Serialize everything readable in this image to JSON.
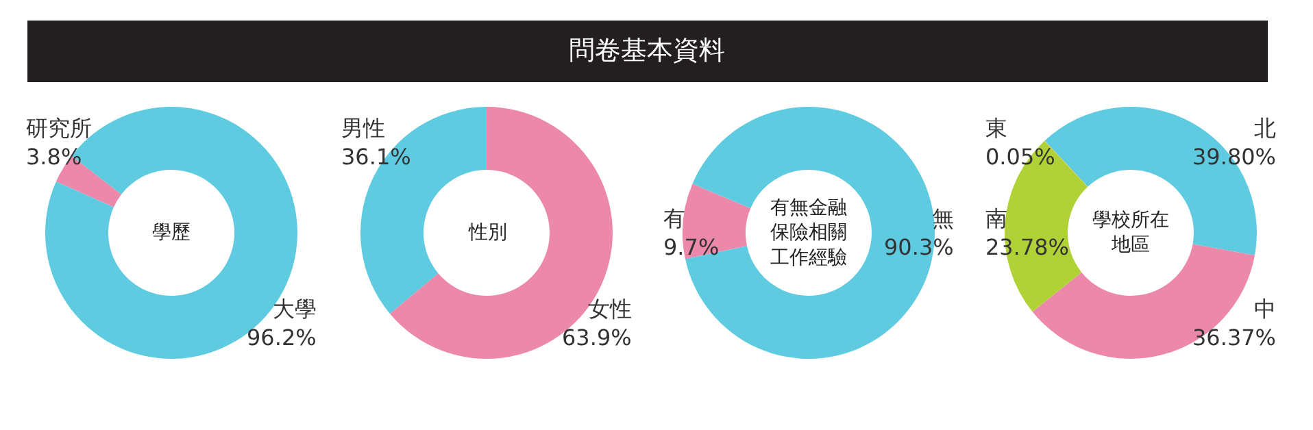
{
  "chart_data": [
    {
      "type": "other",
      "title": "問卷基本資料"
    },
    {
      "type": "donut",
      "title": "學歷",
      "categories": [
        "研究所",
        "大學"
      ],
      "values": [
        3.8,
        96.2
      ],
      "colors": [
        "#ec88a9",
        "#5fcbe0"
      ],
      "value_labels": [
        "3.8%",
        "96.2%"
      ]
    },
    {
      "type": "donut",
      "title": "性別",
      "categories": [
        "男性",
        "女性"
      ],
      "values": [
        36.1,
        63.9
      ],
      "colors": [
        "#5fcbe0",
        "#ec88a9"
      ],
      "value_labels": [
        "36.1%",
        "63.9%"
      ]
    },
    {
      "type": "donut",
      "title": "有無金融保險相關工作經驗",
      "categories": [
        "有",
        "無"
      ],
      "values": [
        9.7,
        90.3
      ],
      "colors": [
        "#ec88a9",
        "#5fcbe0"
      ],
      "value_labels": [
        "9.7%",
        "90.3%"
      ]
    },
    {
      "type": "donut",
      "title": "學校所在地區",
      "categories": [
        "北",
        "中",
        "南",
        "東"
      ],
      "values": [
        39.8,
        36.37,
        23.78,
        0.05
      ],
      "colors": [
        "#5fcbe0",
        "#ec88a9",
        "#b1d236",
        "#f4b63f"
      ],
      "value_labels": [
        "39.80%",
        "36.37%",
        "23.78%",
        "0.05%"
      ]
    }
  ]
}
